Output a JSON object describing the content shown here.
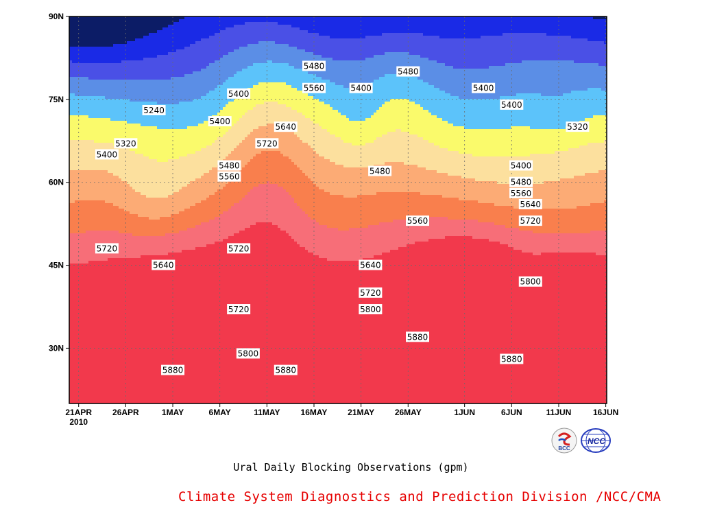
{
  "page": {
    "caption": "Ural Daily Blocking Observations (gpm)",
    "credit": "Climate System Diagnostics and Prediction Division /NCC/CMA",
    "logos": [
      {
        "icon": "bcc-logo-icon",
        "text": "BCC"
      },
      {
        "icon": "ncc-logo-icon",
        "text": "NCC"
      }
    ]
  },
  "chart_data": {
    "type": "contour",
    "title": "",
    "xlabel": "",
    "ylabel": "",
    "x_ticks": [
      "21APR",
      "26APR",
      "1MAY",
      "6MAY",
      "11MAY",
      "16MAY",
      "21MAY",
      "26MAY",
      "1JUN",
      "6JUN",
      "11JUN",
      "16JUN"
    ],
    "x_tick_year": "2010",
    "y_ticks": [
      "90N",
      "75N",
      "60N",
      "45N",
      "30N"
    ],
    "y_tick_values": [
      90,
      75,
      60,
      45,
      30
    ],
    "ylim": [
      20,
      90
    ],
    "xlim": [
      "20APR2010",
      "16JUN2010"
    ],
    "grid": true,
    "levels": [
      5240,
      5320,
      5400,
      5480,
      5560,
      5640,
      5720,
      5800,
      5880
    ],
    "colors": [
      "#0c1c66",
      "#1a2ae6",
      "#4a50e6",
      "#5b8ee6",
      "#5cc3fa",
      "#fafa6b",
      "#fce09e",
      "#fcab75",
      "#f97f4d",
      "#f76e78",
      "#f2394c"
    ],
    "contour_labels": [
      {
        "value": "5240",
        "date": "29APR",
        "lat": 73
      },
      {
        "value": "5320",
        "date": "26APR",
        "lat": 67
      },
      {
        "value": "5400",
        "date": "24APR",
        "lat": 65
      },
      {
        "value": "5400",
        "date": "6MAY",
        "lat": 71
      },
      {
        "value": "5400",
        "date": "8MAY",
        "lat": 76
      },
      {
        "value": "5480",
        "date": "7MAY",
        "lat": 63
      },
      {
        "value": "5560",
        "date": "7MAY",
        "lat": 61
      },
      {
        "value": "5720",
        "date": "24APR",
        "lat": 48
      },
      {
        "value": "5640",
        "date": "30APR",
        "lat": 45
      },
      {
        "value": "5720",
        "date": "8MAY",
        "lat": 48
      },
      {
        "value": "5720",
        "date": "8MAY",
        "lat": 37
      },
      {
        "value": "5800",
        "date": "9MAY",
        "lat": 29
      },
      {
        "value": "5880",
        "date": "1MAY",
        "lat": 26
      },
      {
        "value": "5880",
        "date": "13MAY",
        "lat": 26
      },
      {
        "value": "5480",
        "date": "16MAY",
        "lat": 81
      },
      {
        "value": "5560",
        "date": "16MAY",
        "lat": 77
      },
      {
        "value": "5640",
        "date": "13MAY",
        "lat": 70
      },
      {
        "value": "5720",
        "date": "11MAY",
        "lat": 67
      },
      {
        "value": "5400",
        "date": "21MAY",
        "lat": 77
      },
      {
        "value": "5480",
        "date": "26MAY",
        "lat": 80
      },
      {
        "value": "5480",
        "date": "23MAY",
        "lat": 62
      },
      {
        "value": "5560",
        "date": "27MAY",
        "lat": 53
      },
      {
        "value": "5640",
        "date": "22MAY",
        "lat": 45
      },
      {
        "value": "5720",
        "date": "22MAY",
        "lat": 40
      },
      {
        "value": "5800",
        "date": "22MAY",
        "lat": 37
      },
      {
        "value": "5880",
        "date": "27MAY",
        "lat": 32
      },
      {
        "value": "5400",
        "date": "3JUN",
        "lat": 77
      },
      {
        "value": "5400",
        "date": "6JUN",
        "lat": 74
      },
      {
        "value": "5320",
        "date": "13JUN",
        "lat": 70
      },
      {
        "value": "5400",
        "date": "7JUN",
        "lat": 63
      },
      {
        "value": "5480",
        "date": "7JUN",
        "lat": 60
      },
      {
        "value": "5560",
        "date": "7JUN",
        "lat": 58
      },
      {
        "value": "5640",
        "date": "8JUN",
        "lat": 56
      },
      {
        "value": "5720",
        "date": "8JUN",
        "lat": 53
      },
      {
        "value": "5800",
        "date": "8JUN",
        "lat": 42
      },
      {
        "value": "5880",
        "date": "6JUN",
        "lat": 28
      }
    ]
  }
}
